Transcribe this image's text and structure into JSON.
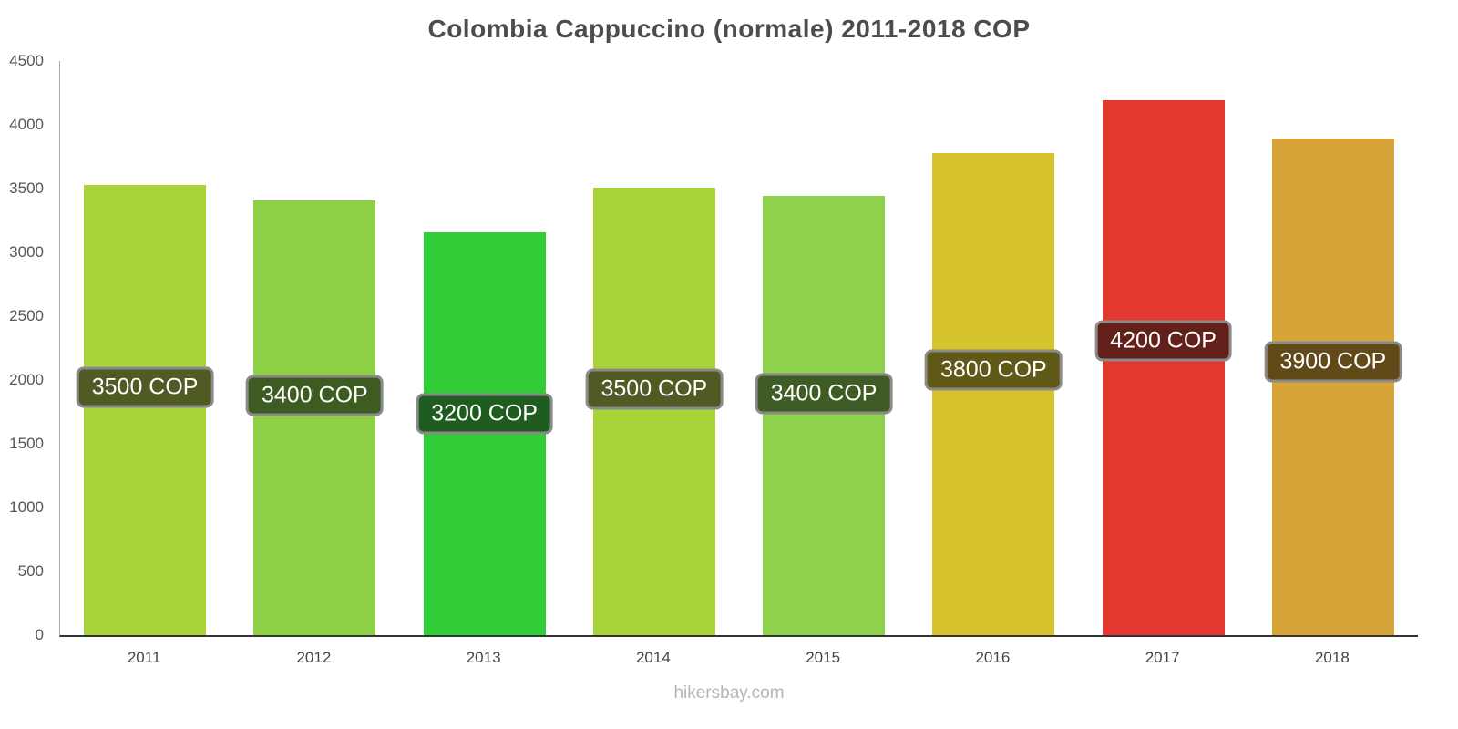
{
  "title": "Colombia Cappuccino (normale) 2011-2018 COP",
  "footer": "hikersbay.com",
  "chart_data": {
    "type": "bar",
    "title": "Colombia Cappuccino (normale) 2011-2018 COP",
    "categories": [
      "2011",
      "2012",
      "2013",
      "2014",
      "2015",
      "2016",
      "2017",
      "2018"
    ],
    "values": [
      3500,
      3400,
      3200,
      3500,
      3400,
      3800,
      4200,
      3900
    ],
    "labels": [
      "3500 COP",
      "3400 COP",
      "3200 COP",
      "3500 COP",
      "3400 COP",
      "3800 COP",
      "4200 COP",
      "3900 COP"
    ],
    "bar_values": [
      3530,
      3410,
      3160,
      3510,
      3440,
      3780,
      4190,
      3890
    ],
    "bar_colors": [
      "#a8d43a",
      "#8ed045",
      "#30cd36",
      "#a8d43a",
      "#8fd14a",
      "#d6c32e",
      "#e2382f",
      "#d7a43a"
    ],
    "label_bg_colors": [
      "#4f5a24",
      "#3e5c22",
      "#1f5c20",
      "#4f5a24",
      "#3f5c24",
      "#605815",
      "#63201b",
      "#614a18"
    ],
    "xlabel": "",
    "ylabel": "",
    "ylim": [
      0,
      4500
    ],
    "ytick_step": 500,
    "yticks": [
      0,
      500,
      1000,
      1500,
      2000,
      2500,
      3000,
      3500,
      4000,
      4500
    ],
    "grid": false,
    "legend": "none",
    "unit": "COP"
  }
}
